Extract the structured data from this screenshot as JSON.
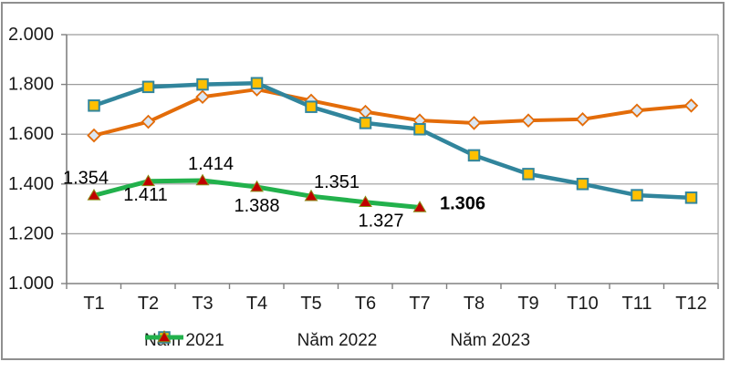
{
  "chart_data": {
    "type": "line",
    "title": "",
    "xlabel": "",
    "ylabel": "",
    "categories": [
      "T1",
      "T2",
      "T3",
      "T4",
      "T5",
      "T6",
      "T7",
      "T8",
      "T9",
      "T10",
      "T11",
      "T12"
    ],
    "series": [
      {
        "name": "Năm 2021",
        "color": "#E36C09",
        "marker": "diamond",
        "marker_fill": "#DCE6F1",
        "values": [
          1595,
          1650,
          1750,
          1780,
          1735,
          1690,
          1655,
          1645,
          1655,
          1660,
          1695,
          1715
        ]
      },
      {
        "name": "Năm 2022",
        "color": "#31859C",
        "marker": "square",
        "marker_fill": "#FFC000",
        "values": [
          1715,
          1790,
          1800,
          1805,
          1710,
          1645,
          1620,
          1515,
          1440,
          1400,
          1355,
          1345
        ]
      },
      {
        "name": "Năm 2023",
        "color": "#22B14C",
        "marker": "triangle",
        "marker_fill": "#C00000",
        "values": [
          1354,
          1411,
          1414,
          1388,
          1351,
          1327,
          1306
        ],
        "data_labels": [
          "1.354",
          "1.411",
          "1.414",
          "1.388",
          "1.351",
          "1.327",
          "1.306"
        ],
        "bold_label_index": 6
      }
    ],
    "ylim": [
      1000,
      2000
    ],
    "ytick_step": 200,
    "ytick_labels": [
      "1.000",
      "1.200",
      "1.400",
      "1.600",
      "1.800",
      "2.000"
    ],
    "grid": true,
    "legend_position": "bottom",
    "colors": {
      "grid": "#9C9C9C",
      "axis": "#808080",
      "frame": "#8F8F8F",
      "text": "#1A1A1A"
    }
  }
}
